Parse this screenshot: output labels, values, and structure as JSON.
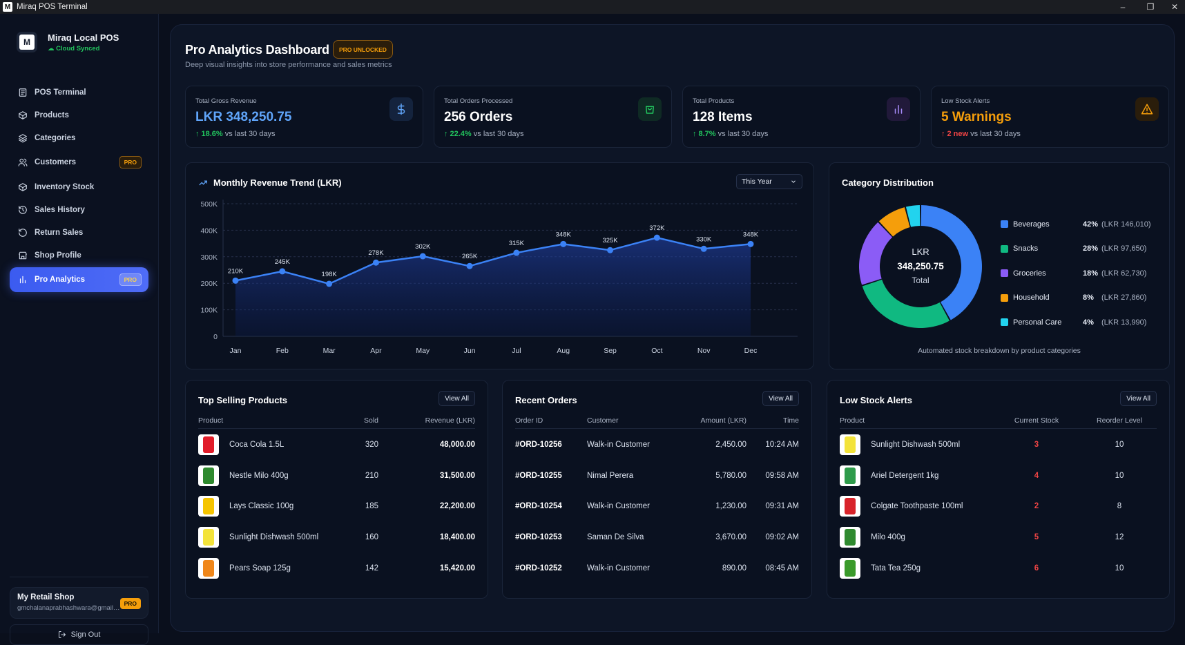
{
  "window": {
    "title": "Miraq POS Terminal"
  },
  "brand": {
    "name": "Miraq Local POS",
    "status": "Cloud Synced"
  },
  "nav": [
    {
      "label": "POS Terminal",
      "icon": "pos-icon"
    },
    {
      "label": "Products",
      "icon": "box-icon"
    },
    {
      "label": "Categories",
      "icon": "layers-icon"
    },
    {
      "label": "Customers",
      "icon": "users-icon",
      "badge": "PRO"
    },
    {
      "label": "Inventory Stock",
      "icon": "package-icon"
    },
    {
      "label": "Sales History",
      "icon": "history-icon"
    },
    {
      "label": "Return Sales",
      "icon": "return-icon"
    },
    {
      "label": "Shop Profile",
      "icon": "store-icon"
    },
    {
      "label": "Pro Analytics",
      "icon": "bar-chart-icon",
      "badge": "PRO",
      "active": true
    }
  ],
  "shop": {
    "name": "My Retail Shop",
    "email": "gmchalanaprabhashwara@gmail.com",
    "badge": "PRO"
  },
  "signout": {
    "label": "Sign Out"
  },
  "page": {
    "title": "Pro Analytics Dashboard",
    "badge": "PRO UNLOCKED",
    "subtitle": "Deep visual insights into store performance and sales metrics"
  },
  "kpis": [
    {
      "label": "Total Gross Revenue",
      "value": "LKR 348,250.75",
      "change": "18.6%",
      "suffix": "vs last 30 days",
      "color": "#60a5fa",
      "change_color": "#22c55e",
      "icon": "dollar-icon"
    },
    {
      "label": "Total Orders Processed",
      "value": "256 Orders",
      "change": "22.4%",
      "suffix": "vs last 30 days",
      "color": "#ffffff",
      "change_color": "#22c55e",
      "icon": "shopping-bag-icon"
    },
    {
      "label": "Total Products",
      "value": "128 Items",
      "change": "8.7%",
      "suffix": "vs last 30 days",
      "color": "#ffffff",
      "change_color": "#22c55e",
      "icon": "bar-chart-icon"
    },
    {
      "label": "Low Stock Alerts",
      "value": "5 Warnings",
      "change": "2 new",
      "suffix": "vs last 30 days",
      "color": "#f59e0b",
      "change_color": "#ef4444",
      "icon": "warning-icon"
    }
  ],
  "revenue": {
    "title": "Monthly Revenue Trend (LKR)",
    "filter": "This Year",
    "chart_data": {
      "type": "area",
      "title": "Monthly Revenue Trend (LKR)",
      "categories": [
        "Jan",
        "Feb",
        "Mar",
        "Apr",
        "May",
        "Jun",
        "Jul",
        "Aug",
        "Sep",
        "Oct",
        "Nov",
        "Dec"
      ],
      "values": [
        210000,
        245000,
        198000,
        278000,
        302000,
        265000,
        315000,
        348000,
        325000,
        372000,
        330000,
        348000
      ],
      "labels": [
        "210K",
        "245K",
        "198K",
        "278K",
        "302K",
        "265K",
        "315K",
        "348K",
        "325K",
        "372K",
        "330K",
        "348K"
      ],
      "yticks": [
        "0",
        "100K",
        "200K",
        "300K",
        "400K",
        "500K"
      ],
      "ylim": [
        0,
        500000
      ],
      "grid": true,
      "color": "#3b82f6"
    }
  },
  "category": {
    "title": "Category Distribution",
    "center": {
      "line1": "LKR",
      "line2": "348,250.75",
      "line3": "Total"
    },
    "note": "Automated stock breakdown by product categories",
    "chart_data": {
      "type": "pie",
      "items": [
        {
          "name": "Beverages",
          "percent": 42,
          "pct_label": "42%",
          "value_label": "(LKR 146,010)",
          "color": "#3b82f6"
        },
        {
          "name": "Snacks",
          "percent": 28,
          "pct_label": "28%",
          "value_label": "(LKR 97,650)",
          "color": "#10b981"
        },
        {
          "name": "Groceries",
          "percent": 18,
          "pct_label": "18%",
          "value_label": "(LKR 62,730)",
          "color": "#8b5cf6"
        },
        {
          "name": "Household",
          "percent": 8,
          "pct_label": "8%",
          "value_label": "(LKR 27,860)",
          "color": "#f59e0b"
        },
        {
          "name": "Personal Care",
          "percent": 4,
          "pct_label": "4%",
          "value_label": "(LKR 13,990)",
          "color": "#22d3ee"
        }
      ]
    }
  },
  "top_selling": {
    "title": "Top Selling Products",
    "view_all": "View All",
    "columns": [
      "Product",
      "Sold",
      "Revenue (LKR)"
    ],
    "rows": [
      {
        "product": "Coca Cola 1.5L",
        "sold": "320",
        "revenue": "48,000.00",
        "thumb": "#e11d2a"
      },
      {
        "product": "Nestle Milo 400g",
        "sold": "210",
        "revenue": "31,500.00",
        "thumb": "#2f8a2f"
      },
      {
        "product": "Lays Classic 100g",
        "sold": "185",
        "revenue": "22,200.00",
        "thumb": "#f5c400"
      },
      {
        "product": "Sunlight Dishwash 500ml",
        "sold": "160",
        "revenue": "18,400.00",
        "thumb": "#f3e33a"
      },
      {
        "product": "Pears Soap 125g",
        "sold": "142",
        "revenue": "15,420.00",
        "thumb": "#f0871a"
      }
    ]
  },
  "recent_orders": {
    "title": "Recent Orders",
    "view_all": "View All",
    "columns": [
      "Order ID",
      "Customer",
      "Amount (LKR)",
      "Time"
    ],
    "rows": [
      {
        "id": "#ORD-10256",
        "customer": "Walk-in Customer",
        "amount": "2,450.00",
        "time": "10:24 AM"
      },
      {
        "id": "#ORD-10255",
        "customer": "Nimal Perera",
        "amount": "5,780.00",
        "time": "09:58 AM"
      },
      {
        "id": "#ORD-10254",
        "customer": "Walk-in Customer",
        "amount": "1,230.00",
        "time": "09:31 AM"
      },
      {
        "id": "#ORD-10253",
        "customer": "Saman De Silva",
        "amount": "3,670.00",
        "time": "09:02 AM"
      },
      {
        "id": "#ORD-10252",
        "customer": "Walk-in Customer",
        "amount": "890.00",
        "time": "08:45 AM"
      }
    ]
  },
  "low_stock": {
    "title": "Low Stock Alerts",
    "view_all": "View All",
    "columns": [
      "Product",
      "Current Stock",
      "Reorder Level"
    ],
    "rows": [
      {
        "product": "Sunlight Dishwash 500ml",
        "stock": "3",
        "reorder": "10",
        "thumb": "#f3e33a"
      },
      {
        "product": "Ariel Detergent 1kg",
        "stock": "4",
        "reorder": "10",
        "thumb": "#2e9b4a"
      },
      {
        "product": "Colgate Toothpaste 100ml",
        "stock": "2",
        "reorder": "8",
        "thumb": "#d8232a"
      },
      {
        "product": "Milo 400g",
        "stock": "5",
        "reorder": "12",
        "thumb": "#2f8a2f"
      },
      {
        "product": "Tata Tea 250g",
        "stock": "6",
        "reorder": "10",
        "thumb": "#3a9a2a"
      }
    ]
  }
}
